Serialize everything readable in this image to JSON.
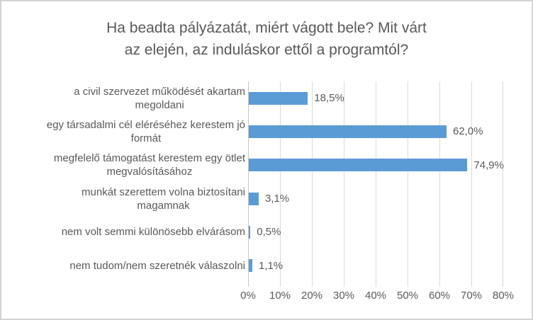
{
  "window": {
    "background": "#FFFFFF",
    "border_color": "#D3D3D3"
  },
  "chart_data": {
    "type": "bar",
    "orientation": "horizontal",
    "title": "Ha beadta pályázatát, miért vágott bele? Mit várt az elején, az induláskor ettől a programtól?",
    "title_lines": [
      "Ha beadta pályázatát, miért vágott bele? Mit várt",
      "az elején, az induláskor ettől a programtól?"
    ],
    "categories": [
      "a civil szervezet működését akartam megoldani",
      "egy társadalmi cél eléréséhez kerestem jó formát",
      "megfelelő támogatást kerestem egy ötlet megvalósításához",
      "munkát szerettem volna biztosítani magamnak",
      "nem volt semmi különösebb elvárásom",
      "nem tudom/nem szeretnék válaszolni"
    ],
    "categories_wrapped": [
      "a civil szervezet működését akartam\nmegoldani",
      "egy társadalmi cél eléréséhez kerestem jó\nformát",
      "megfelelő támogatást kerestem egy ötlet\nmegvalósításához",
      "munkát szerettem volna biztosítani\nmagamnak",
      "nem volt semmi különösebb elvárásom",
      "nem tudom/nem szeretnék válaszolni"
    ],
    "values": [
      18.5,
      62.0,
      74.9,
      3.1,
      0.5,
      1.1
    ],
    "value_labels": [
      "18,5%",
      "62,0%",
      "74,9%",
      "3,1%",
      "0,5%",
      "1,1%"
    ],
    "xlabel": "",
    "ylabel": "",
    "xlim": [
      0,
      80
    ],
    "x_tick_step": 10,
    "x_ticks": [
      "0%",
      "10%",
      "20%",
      "30%",
      "40%",
      "50%",
      "60%",
      "70%",
      "80%"
    ],
    "grid": true,
    "legend": false,
    "bar_color": "#5B9BD5",
    "gridline_color": "#D9D9D9",
    "text_color": "#595959"
  }
}
